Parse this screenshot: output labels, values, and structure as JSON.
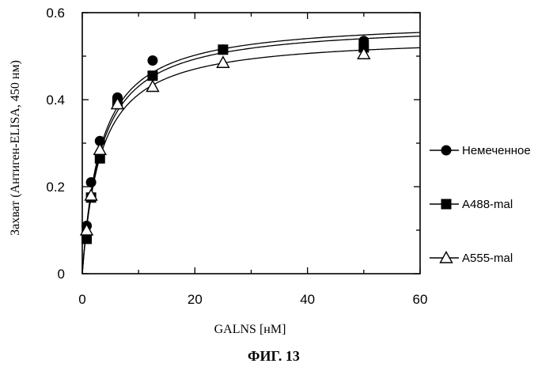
{
  "chart_data": {
    "type": "scatter",
    "title": "",
    "xlabel": "GALNS [нМ]",
    "ylabel": "Захват (Антиген-ELISA, 450 нм)",
    "xlim": [
      0,
      60
    ],
    "ylim": [
      0,
      0.6
    ],
    "xticks": [
      0,
      20,
      40,
      60
    ],
    "yticks": [
      0,
      0.2,
      0.4,
      0.6
    ],
    "ytick_labels": [
      "0",
      "0.2",
      "0.4",
      "0.6"
    ],
    "grid": false,
    "legend_position": "right",
    "caption": "ФИГ. 13",
    "series": [
      {
        "name": "Немеченное",
        "marker": "circle-filled",
        "x": [
          0.78,
          1.56,
          3.13,
          6.25,
          12.5,
          25,
          50
        ],
        "y": [
          0.11,
          0.21,
          0.305,
          0.405,
          0.49,
          0.515,
          0.535
        ],
        "fit_max": 0.585,
        "fit_kd": 3.3
      },
      {
        "name": "А488-mal",
        "marker": "square-filled",
        "x": [
          0.78,
          1.56,
          3.13,
          6.25,
          12.5,
          25,
          50
        ],
        "y": [
          0.08,
          0.175,
          0.265,
          0.395,
          0.455,
          0.515,
          0.52
        ],
        "fit_max": 0.577,
        "fit_kd": 3.4
      },
      {
        "name": "А555-mal",
        "marker": "triangle-open",
        "x": [
          0.78,
          1.56,
          3.13,
          6.25,
          12.5,
          25,
          50
        ],
        "y": [
          0.1,
          0.18,
          0.285,
          0.39,
          0.43,
          0.485,
          0.505
        ],
        "fit_max": 0.548,
        "fit_kd": 3.3
      }
    ]
  }
}
